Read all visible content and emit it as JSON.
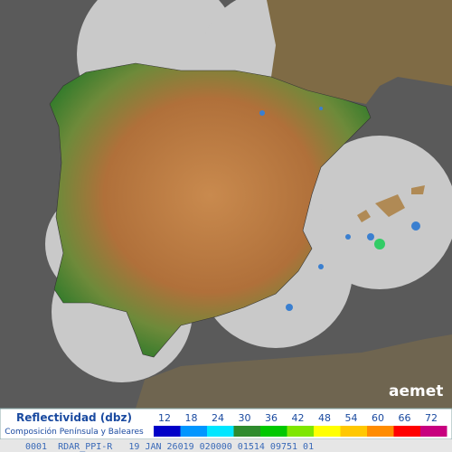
{
  "logo": "aemet",
  "legend": {
    "title": "Reflectividad (dbz)",
    "subtitle": "Composición Península y Baleares",
    "values": [
      12,
      18,
      24,
      30,
      36,
      42,
      48,
      54,
      60,
      66,
      72
    ],
    "colors": [
      "#0000c8",
      "#0096ff",
      "#00e6ff",
      "#2e8b2e",
      "#00c800",
      "#7fe600",
      "#ffff00",
      "#ffc800",
      "#ff8c00",
      "#ff0000",
      "#c8007f"
    ]
  },
  "footer": "0001  RDAR_PPI-R   19 JAN 26019 020000 01514 09751 01"
}
